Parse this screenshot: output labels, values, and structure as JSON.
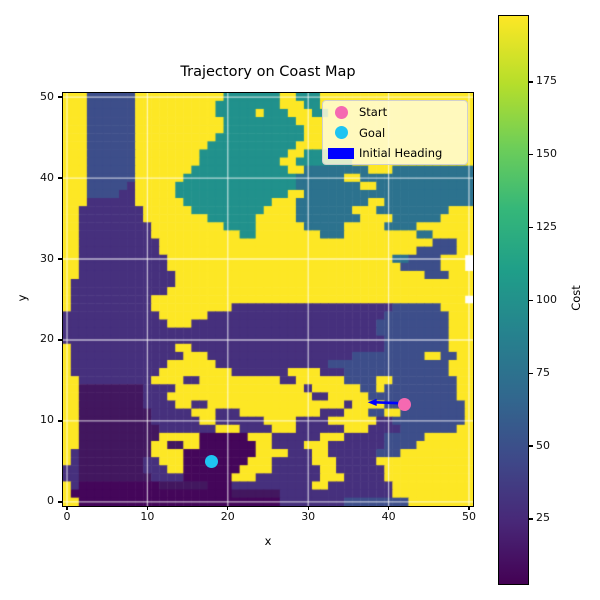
{
  "title": "Trajectory on Coast Map",
  "axes": {
    "xlabel": "x",
    "ylabel": "y",
    "x_ticks": [
      0,
      10,
      20,
      30,
      40,
      50
    ],
    "y_ticks": [
      0,
      10,
      20,
      30,
      40,
      50
    ],
    "xlim": [
      -0.5,
      50.5
    ],
    "ylim": [
      -0.5,
      50.5
    ],
    "grid": true,
    "gridline_color": "rgba(255,255,255,0.65)"
  },
  "legend": {
    "items": [
      {
        "label": "Start",
        "marker": "circle",
        "color": "#f569b1"
      },
      {
        "label": "Goal",
        "marker": "circle",
        "color": "#1ec4f2"
      },
      {
        "label": "Initial Heading",
        "marker": "rect",
        "color": "#0000ff"
      }
    ],
    "background": "#fffcd8",
    "position": "upper right"
  },
  "colorbar": {
    "label": "Cost",
    "ticks": [
      25,
      50,
      75,
      100,
      125,
      150,
      175
    ],
    "vmin": 3,
    "vmax": 198,
    "colormap": "viridis"
  },
  "chart_data": {
    "type": "heatmap",
    "title": "Trajectory on Coast Map",
    "xlabel": "x",
    "ylabel": "y",
    "colorbar_label": "Cost",
    "value_range": [
      3,
      198
    ],
    "grid_size": [
      51,
      51
    ],
    "legend_entries": [
      "Start",
      "Goal",
      "Initial Heading"
    ],
    "markers": {
      "start": {
        "x": 42,
        "y": 12,
        "color": "#f569b1",
        "label": "Start"
      },
      "goal": {
        "x": 18,
        "y": 5,
        "color": "#1ec4f2",
        "label": "Goal"
      },
      "heading": {
        "from_x": 41.3,
        "from_y": 12.2,
        "to_x": 37.4,
        "to_y": 12.3,
        "color": "#0000ff",
        "label": "Initial Heading"
      }
    },
    "palette": {
      "Y": "#fde725",
      "T": "#21918c",
      "U": "#2c728e",
      "S": "#3d4e8a",
      "P": "#46307d",
      "Q": "#42175f",
      "D": "#44065a"
    },
    "class_cost_values": {
      "Y": 196,
      "T": 100,
      "U": 80,
      "S": 58,
      "P": 25,
      "Q": 12,
      "D": 4
    },
    "rows_top_to_bottom": [
      "YYYSSSSSSYYYYYYYYYYYTTTTTTTYYTTTYYYYYYYYYYYYYYYYYYY",
      "YYYSSSSSSYYYYYYYYYYTTTTTTTTYYYTTYYYYYYYYYYYYYYYYYYY",
      "YYYSSSSSSYYYYYYYYYYTTTTTYTTTYYYTTYYYYYYYYYYYYYYYYYY",
      "YYYSSSSSSYYYYYYYYYYYTTTTTTTTTYYYYYYYYYYYYYYYYYYYYYY",
      "YYYSSSSSSYYYYYYYYYYYTTTTTTTTTTYYYYYYYYYYYYYYYYYYYYY",
      "YYYSSSSSSYYYYYYYYYYTTTTTTTTTTTYYYYYYYYYYYYYYYYYYYYY",
      "YYYSSSSSSYYYYYYYYYTTTTTTTTTTTYYYYYYYYYYYYYYYYYYYYYY",
      "YYYSSSSSSYYYYYYYYTTTTTTTTTTTYYTTTTYYYYYYYYYYYYYYYYY",
      "YYYSSSSSSYYYYYYYYTTTTTTTTTTYYTTTTTTTYYYYYYYYYYYYYYY",
      "YYYSSSSSSYYYYYYYTTTTTTTTTTTTYYUUUUUUUUYYYUUUUUUUUUU",
      "YYYSSSSSSYYYYYYTTTTTTTTTTTTTTUUUUUUYYUUUUUUUUUUUUUU",
      "YYYSSSSSPYYYYYTTTTTTTTTTTTTTTUUUUUUUUYYUUUUUUUUUUUU",
      "YYYSSSSPPYYYYYTTTTTTTTTTTTTTYYUUUUUUUUUUUUUUUUUUUUU",
      "YYYPPPPPPYYYYYYTTTTTTTTTTTYYYUUUUUUUUUYYUUUUUUUUUUU",
      "YYPPPPPPPPYYYYYYTTTTTTTTTYYYYUUUUUUUYYYUUUUUUUUUYYY",
      "YYPPPPPPPPYYYYYYYYTTTTTTYYYYYUUUUUUUUYYYYUUUUUUYYYY",
      "YYPPPPPPPPPYYYYYYYYYTTTTYYYYYYUUUUUYYYYYUUUUYYYYYYY",
      "YYPPPPPPPPPYYYYYYYYYYYTTYYYYYYYYUUUYYYYYYYYYUUYYYYY",
      "YYPPPPPPPPPPYYYYYYYYYYYYYYYYYYYYYYYYYYYYYYYYYYSSSYY",
      "YYPPPPPPPPPPYYYYYYYYYYYYYYYYYYYYYYYYYYYYYYYYSSSSSYY",
      "YYPPPPPPPPPPPYYYYYYYYYYYYYYYYYYYYYYYYYYYYUUSSSSYYY",
      "YYPPPPPPPPPPPYYYYYYYYYYYYYYYYYYYYYYYYYYYYYSSSSSYYY",
      "YYPPPPPPPPPPPPYYYYYYYYYYYYYYYYYYYYYYYYYYYYYYYSSSYYY",
      "YPPPPPPPPPPPPPYYYYYYYYYYYYYYYYYYYYYYYYYYYYYYYYYYYYY",
      "YPPPPPPPPPPPPYYYYYYYYYYYYYYYYYYYYYYYYYYYYYYYYYYYYYY",
      "YPPPPPPPPPPYYYYYYYYYYYYYYYYYYYYYYYYYYYYYYYYYYYYYYY",
      "YPPPPPPPPPPYYYYYYYYYYPPPPPPPPPPPPPPPPPPPPSSSSSSYYYY",
      "PPPPPPPPPPPPYYYYYYPPPPPPPPPPPPPPPPPPPPPPSSSSSSSSYYY",
      "PPPPPPPPPPPPPYYYPPPPPPPPPPPPPPPPPPPPPPPSSSSSSSSSYYY",
      "PPPPPPPPPPPPPPPPPPPPPPPPPPPPPPPPPPPPPPPSSSSSSSSSYYY",
      "PPPPPPPPPPPPPPPPPPPPPPPPPPPPPPPPPPPPPPPPSSSSSSSSYYY",
      "YPPPPPPPPPPPPPYYPPPPPPPPPPPPPPPPPPPPPPPPSSSSSSSSYYY",
      "YPPPPPPPPPPPPPPYYYPPPPPPPPPPPPPPPPPPSSSSSSSSSYYSSYY",
      "YPPPPPPPPPPPPYYYYYYPPPPPPPPPPPPPPSSSSSSSSSSSSSSSYYY",
      "YPPPPPPPPPPPYYYYYYYYYPPPPPPPYYYYPPPSSSSSSSSSSSSSYYY",
      "YYPPPPPPPPPYYYYPPYYYYYYYYYYPPYYYYYYSSSSYYSSSSSSSSYY",
      "YYQQQQQQQQPPPPYYYYYYYYYYYYYYYYPYYYYYYSSYSSSSSSSSSYY",
      "YYQQQQQQQQPPPYYYYYYYYYYYYYYYYYYPPYYYYYSSSSSSSSSSSYY",
      "YYQQQQQQQQPPPPYYPPYYYYYYYYYYYYYYYYYPYYYYSSSSSSSSSSY",
      "YYQQQQQQQQQPPPPPYYYPPPYYYYYYYYYYPPPYYYSSYYSSSSSSSSY",
      "YYQQQQQQQQQPPPPPPYYPPPPPPYYYYPPPPYYYYYYPPSSSSSSSSSY",
      "YYQQQQQQQQQQPPPPPPPYYYPPPPYYYPPPPPPYYYPPPPSSSSSSSYY",
      "YYQQQQQQQQQQYYYYYDDDDDDYYYPPPPPPYYYPPPPPSSSSSYYYYYY",
      "YYQQQQQQQQQYYQQYYDDDDDDDYYPPPPYYYPPPPPPPSSSSYYYYYYY",
      "YPQQQQQQQQQYYYYDDDDDDDDDYYYYPPPYYPPPPPPSSSYYYYYYYYY",
      "YPQQQQQQQQPPYYYDDDDDDDDYYYPPPPPYYYPPPPPYYYYYYYYYYYY",
      "PPQQQQQQQQPPPYYDDDDDDDYYYYPPPPPPYYPPPPPPYYYYYYYYYYY",
      "PPQQQQQQQQQPPPPDDDDDDYYYPPPPPPPPYYYPPPPPYYYYYYYYYYY",
      "YPDDDDDDDDDDQQQQQQDDDPPPPPPPPPPYYPPPPPPPPYYYYYYYYYY",
      "YDDDDDDDDDDDDDDDDDDDDQQQQQQPPPPPPPPPPPPPPYYYYYYYYYY",
      "YYDDDDDDDDDDDDDDDDDDDDDDDDDPPPPPPPPSSSSSSSSYYYYYYYY"
    ]
  }
}
